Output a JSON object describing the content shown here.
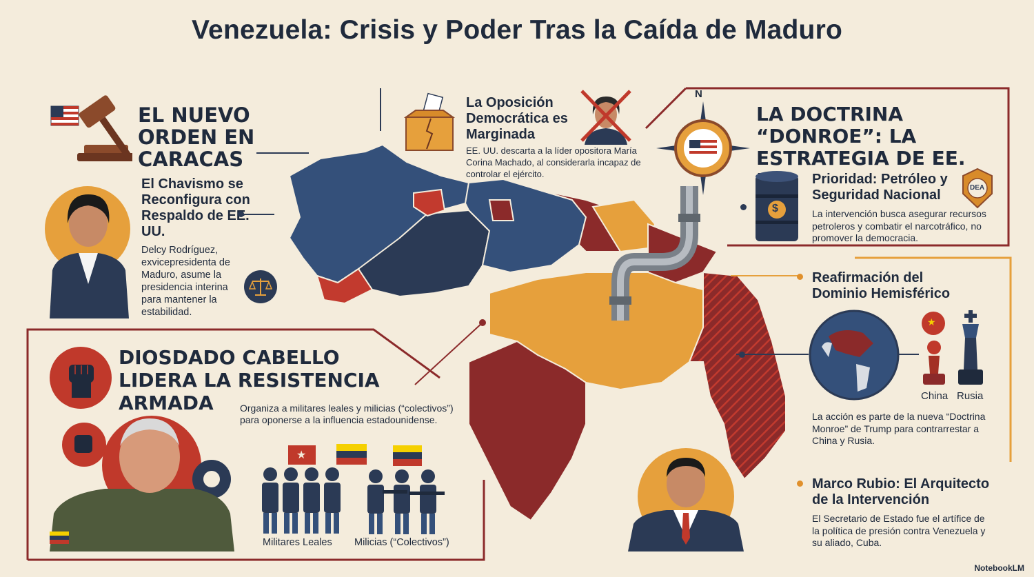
{
  "title": "Venezuela: Crisis y Poder Tras la Caída de Maduro",
  "nuevo_orden": {
    "heading": "EL NUEVO ORDEN EN CARACAS",
    "subheading": "El Chavismo se Reconfigura con Respaldo de EE. UU.",
    "body": "Delcy Rodríguez, exvicepresidenta de Maduro, asume la presidencia interina para mantener la estabilidad."
  },
  "oposicion": {
    "heading": "La Oposición Democrática es Marginada",
    "body": "EE. UU. descarta a la líder opositora María Corina Machado, al considerarla incapaz de controlar el ejército."
  },
  "doctrina": {
    "heading": "LA DOCTRINA “DONROE”: LA ESTRATEGIA DE EE. UU.",
    "compass_letter": "N",
    "prioridad_heading": "Prioridad: Petróleo y Seguridad Nacional",
    "prioridad_body": "La intervención busca asegurar recursos petroleros y combatir el narcotráfico, no promover la democracia.",
    "badge_text": "DEA",
    "barrel_symbol": "$"
  },
  "reafirmacion": {
    "heading": "Reafirmación del Dominio Hemisférico",
    "label_china": "China",
    "label_rusia": "Rusia",
    "body": "La acción es parte de la nueva “Doctrina Monroe” de Trump para contrarrestar a China y Rusia."
  },
  "rubio": {
    "heading": "Marco Rubio: El Arquitecto de la Intervención",
    "body": "El Secretario de Estado fue el artífice de la política de presión contra Venezuela y su aliado, Cuba."
  },
  "cabello": {
    "heading": "DIOSDADO CABELLO LIDERA LA RESISTENCIA ARMADA",
    "body": "Organiza a militares leales y milicias (“colectivos”) para oponerse a la influencia estadounidense.",
    "label_militares": "Militares Leales",
    "label_milicias": "Milicias (“Colectivos”)"
  },
  "footer": {
    "logo": "NotebookLM"
  },
  "colors": {
    "navy": "#2b3a55",
    "red": "#8b2a2a",
    "crimson": "#c0392b",
    "orange": "#e6a03c",
    "background": "#f4ecdc"
  },
  "icons": [
    "gavel-icon",
    "us-flag-icon",
    "ballot-box-icon",
    "crossed-out-portrait-icon",
    "compass-icon",
    "oil-barrel-icon",
    "dea-badge-icon",
    "scales-icon",
    "fist-icon",
    "gear-icon",
    "globe-icon",
    "chess-pawn-icon",
    "chess-king-icon",
    "china-flag-icon",
    "venezuela-flag-icon",
    "soldiers-icon",
    "militia-icon",
    "pipe-icon"
  ]
}
